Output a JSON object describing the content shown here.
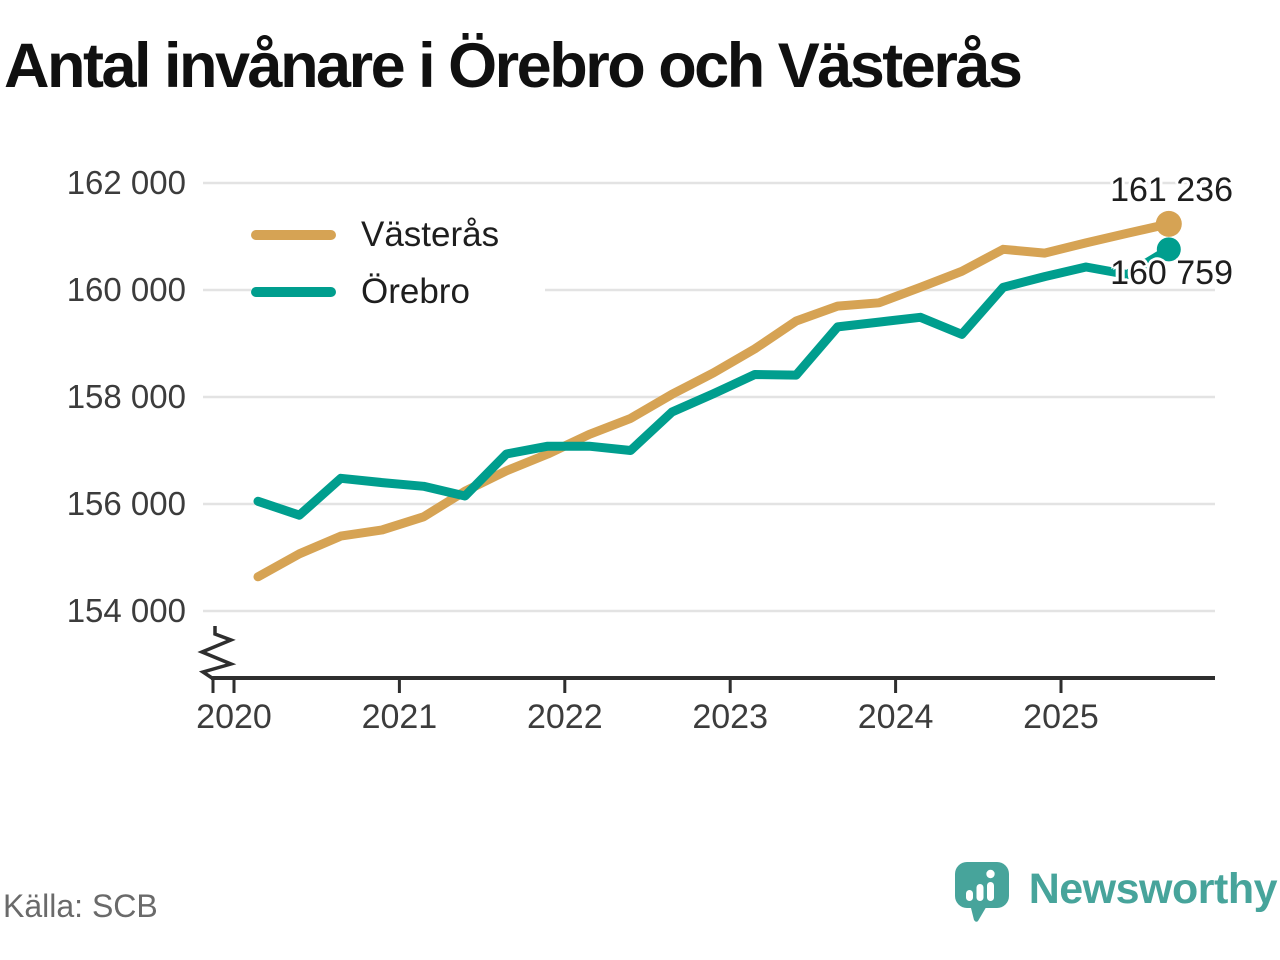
{
  "title": "Antal invånare i Örebro och Västerås",
  "source": "Källa: SCB",
  "brand": {
    "name": "Newsworthy",
    "color": "#47a49b"
  },
  "colors": {
    "vasteras": "#d6a354",
    "orebro": "#009e8e",
    "gridline": "#e3e3e3",
    "axis": "#2e2e2e"
  },
  "chart_data": {
    "type": "line",
    "title": "Antal invånare i Örebro och Västerås",
    "xlabel": "",
    "ylabel": "",
    "x_unit": "quarter",
    "grid": "horizontal",
    "legend_position": "top-left",
    "y_axis_break": true,
    "ylim": [
      154000,
      162000
    ],
    "x_tick_labels": [
      "2020",
      "2021",
      "2022",
      "2023",
      "2024",
      "2025"
    ],
    "y_tick_labels": [
      "162 000",
      "160 000",
      "158 000",
      "156 000",
      "154 000"
    ],
    "y_tick_values": [
      162000,
      160000,
      158000,
      156000,
      154000
    ],
    "quarters": [
      "2020 kv1",
      "2020 kv2",
      "2020 kv3",
      "2020 kv4",
      "2021 kv1",
      "2021 kv2",
      "2021 kv3",
      "2021 kv4",
      "2022 kv1",
      "2022 kv2",
      "2022 kv3",
      "2022 kv4",
      "2023 kv1",
      "2023 kv2",
      "2023 kv3",
      "2023 kv4",
      "2024 kv1",
      "2024 kv2",
      "2024 kv3",
      "2024 kv4",
      "2025 kv1",
      "2025 kv2",
      "2025 kv3"
    ],
    "series": [
      {
        "name": "Västerås",
        "color": "#d6a354",
        "end_label": "161 236",
        "end_value": 161236,
        "values": [
          154640,
          155070,
          155400,
          155515,
          155760,
          156240,
          156620,
          156935,
          157300,
          157600,
          158050,
          158450,
          158900,
          159420,
          159700,
          159760,
          160050,
          160350,
          160760,
          160690,
          160880,
          161060,
          161236
        ]
      },
      {
        "name": "Örebro",
        "color": "#009e8e",
        "end_label": "160 759",
        "end_value": 160759,
        "values": [
          156050,
          155790,
          156480,
          156400,
          156330,
          156150,
          156935,
          157080,
          157080,
          157000,
          157720,
          158060,
          158420,
          158410,
          159310,
          159400,
          159490,
          159170,
          160050,
          160250,
          160430,
          160290,
          160759
        ]
      }
    ]
  }
}
